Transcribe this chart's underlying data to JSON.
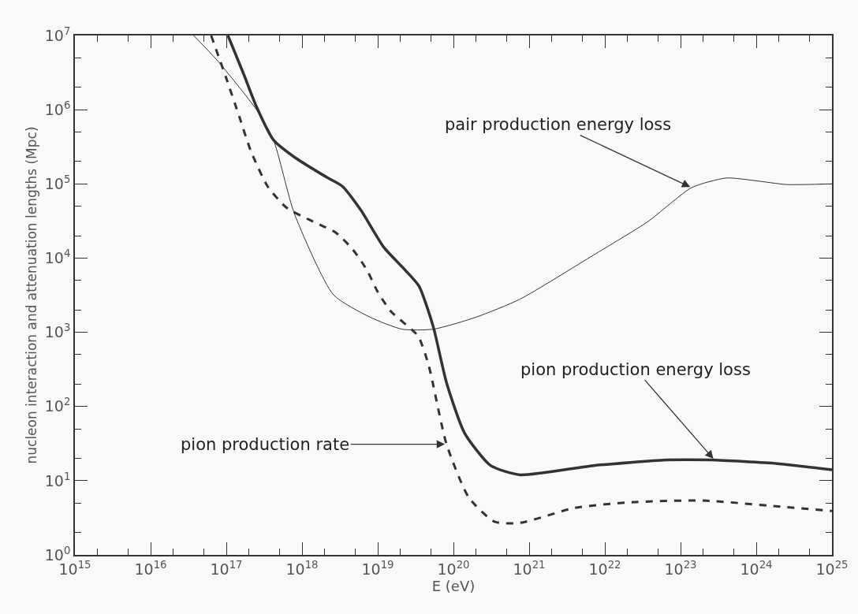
{
  "chart_data": {
    "type": "line",
    "xlabel": "E (eV)",
    "ylabel": "nucleon interaction and attenuation lengths (Mpc)",
    "log": "xy",
    "grid": false,
    "marker": "none",
    "xlim": [
      1000000000000000.0,
      1e+25
    ],
    "ylim": [
      1,
      10000000.0
    ],
    "xticks": [
      {
        "value": 1000000000000000.0,
        "label": "10$^{15}$"
      },
      {
        "value": 1e+16,
        "label": "10$^{16}$"
      },
      {
        "value": 1e+17,
        "label": "10$^{17}$"
      },
      {
        "value": 1e+18,
        "label": "10$^{18}$"
      },
      {
        "value": 1e+19,
        "label": "10$^{19}$"
      },
      {
        "value": 1e+20,
        "label": "10$^{20}$"
      },
      {
        "value": 1e+21,
        "label": "10$^{21}$"
      },
      {
        "value": 1e+22,
        "label": "10$^{22}$"
      },
      {
        "value": 1e+23,
        "label": "10$^{23}$"
      },
      {
        "value": 1e+24,
        "label": "10$^{24}$"
      },
      {
        "value": 1e+25,
        "label": "10$^{25}$"
      }
    ],
    "yticks": [
      {
        "value": 1,
        "label": "10$^{0}$"
      },
      {
        "value": 10,
        "label": "10$^{1}$"
      },
      {
        "value": 100,
        "label": "10$^{2}$"
      },
      {
        "value": 1000,
        "label": "10$^{3}$"
      },
      {
        "value": 10000,
        "label": "10$^{4}$"
      },
      {
        "value": 100000,
        "label": "10$^{5}$"
      },
      {
        "value": 1000000,
        "label": "10$^{6}$"
      },
      {
        "value": 10000000,
        "label": "10$^{7}$"
      }
    ],
    "series": [
      {
        "color": "#333333",
        "line_style": "solid",
        "x": [
          3.7e+16,
          7.6e+16,
          2.5e+17,
          4.2e+17,
          7.9e+17,
          2.6e+18,
          7.9e+18,
          2.1e+19,
          5.4e+19,
          2e+20,
          7.6e+20,
          7.1e+21,
          3.7e+22,
          1.4e+23,
          4e+23,
          1e+24,
          2.5e+24,
          1e+25
        ],
        "values": [
          10000000.0,
          4600000.0,
          1000000.0,
          390000.0,
          40000.0,
          3200.0,
          1600.0,
          1100.0,
          1100.0,
          1600.0,
          2800.0,
          11000.0,
          31000.0,
          89000.0,
          120000.0,
          110000.0,
          98000.0,
          100000.0
        ]
      },
      {
        "color": "#333333",
        "line_style": "solid",
        "x": [
          1.05e+17,
          1.7e+17,
          2.5e+17,
          4.2e+17,
          7.9e+17,
          2.2e+18,
          3.4e+18,
          6e+18,
          1.2e+19,
          2.3e+19,
          3.5e+19,
          5.4e+19,
          8.1e+19,
          1.4e+20,
          3.1e+20,
          7.6e+20,
          7.1e+21,
          6.5e+22,
          2.5e+23,
          1.9e+24,
          1e+25
        ],
        "values": [
          10000000.0,
          3000000.0,
          1100000.0,
          390000.0,
          230000.0,
          120000.0,
          93000.0,
          44000.0,
          14000.0,
          6900.0,
          4200.0,
          1200.0,
          210,
          44,
          16,
          12,
          16,
          19,
          19,
          17,
          14
        ]
      },
      {
        "color": "#333333",
        "line_style": "dashed",
        "x": [
          6.3e+16,
          9.8e+16,
          1.5e+17,
          2.1e+17,
          3.5e+17,
          6.2e+17,
          1.4e+18,
          2.8e+18,
          4.7e+18,
          7.2e+18,
          1e+19,
          1.5e+19,
          3.4e+19,
          4.7e+19,
          8.1e+19,
          1.6e+20,
          3.5e+20,
          7.6e+20,
          4e+21,
          2.1e+22,
          2e+23,
          1.9e+24,
          1e+25
        ],
        "values": [
          10000000.0,
          2800000.0,
          780000.0,
          280000.0,
          93000.0,
          48000.0,
          31000.0,
          22000.0,
          13000.0,
          6900.0,
          3500.0,
          1900.0,
          890,
          360,
          31,
          5.9,
          2.8,
          2.7,
          4.3,
          5.1,
          5.4,
          4.5,
          3.9
        ]
      }
    ],
    "annotations": [
      {
        "text": "pair production energy loss",
        "x": 1.4e+23,
        "y": 89000.0
      },
      {
        "text": "pion production energy loss",
        "x": 2.8e+23,
        "y": 19
      },
      {
        "text": "pion production rate",
        "x": 8.1e+19,
        "y": 31
      }
    ]
  }
}
